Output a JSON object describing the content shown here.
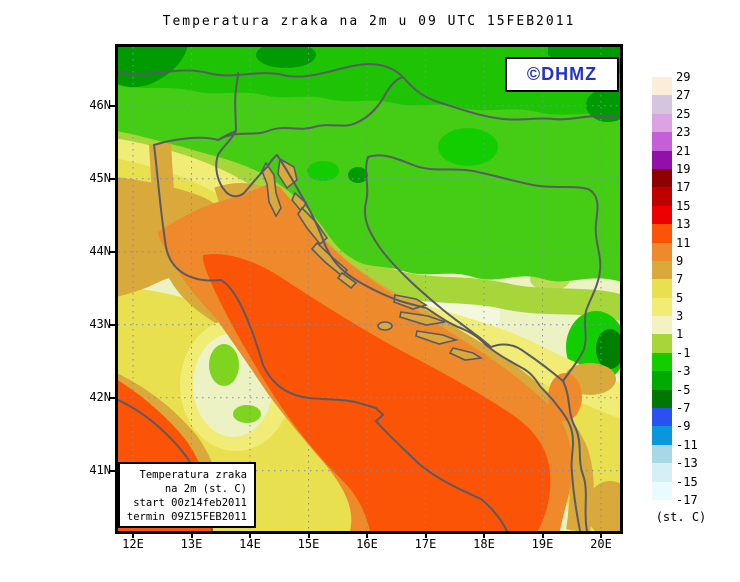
{
  "title": "Temperatura zraka na 2m u 09 UTC 15FEB2011",
  "watermark": {
    "label": "©DHMZ"
  },
  "info_box": {
    "lines": [
      "Temperatura zraka",
      "na 2m (st. C)",
      "start 00z14feb2011",
      "termin 09Z15FEB2011"
    ]
  },
  "axes": {
    "lat_labels": [
      "46N",
      "45N",
      "44N",
      "43N",
      "42N",
      "41N"
    ],
    "lon_labels": [
      "12E",
      "13E",
      "14E",
      "15E",
      "16E",
      "17E",
      "18E",
      "19E",
      "20E"
    ]
  },
  "colorbar": {
    "unit": "(st. C)",
    "tick_labels": [
      "29",
      "27",
      "25",
      "23",
      "21",
      "19",
      "17",
      "15",
      "13",
      "11",
      "9",
      "7",
      "5",
      "3",
      "1",
      "-1",
      "-3",
      "-5",
      "-7",
      "-9",
      "-11",
      "-13",
      "-15",
      "-17"
    ],
    "swatches": [
      "#FCEDD8",
      "#D5C5DE",
      "#DCA3E4",
      "#C45FD8",
      "#920FA8",
      "#8E0002",
      "#C00000",
      "#EE0000",
      "#FB5406",
      "#EF8A2C",
      "#D9A93B",
      "#E9E04F",
      "#F0EC75",
      "#F2F2C2",
      "#A6D63A",
      "#12CE00",
      "#00AA00",
      "#007800",
      "#2A50F0",
      "#0896DC",
      "#A8D8E8",
      "#D5EFF5",
      "#E8FCFF"
    ]
  },
  "map_colors": {
    "grid": "#7C8CB4",
    "coastline": "#5A5A64",
    "watermark_blue": "#2233CC",
    "sea_warm_core": "#FB5406",
    "sea_warm": "#EF8A2C",
    "land_cold_green": "#45CC14"
  }
}
